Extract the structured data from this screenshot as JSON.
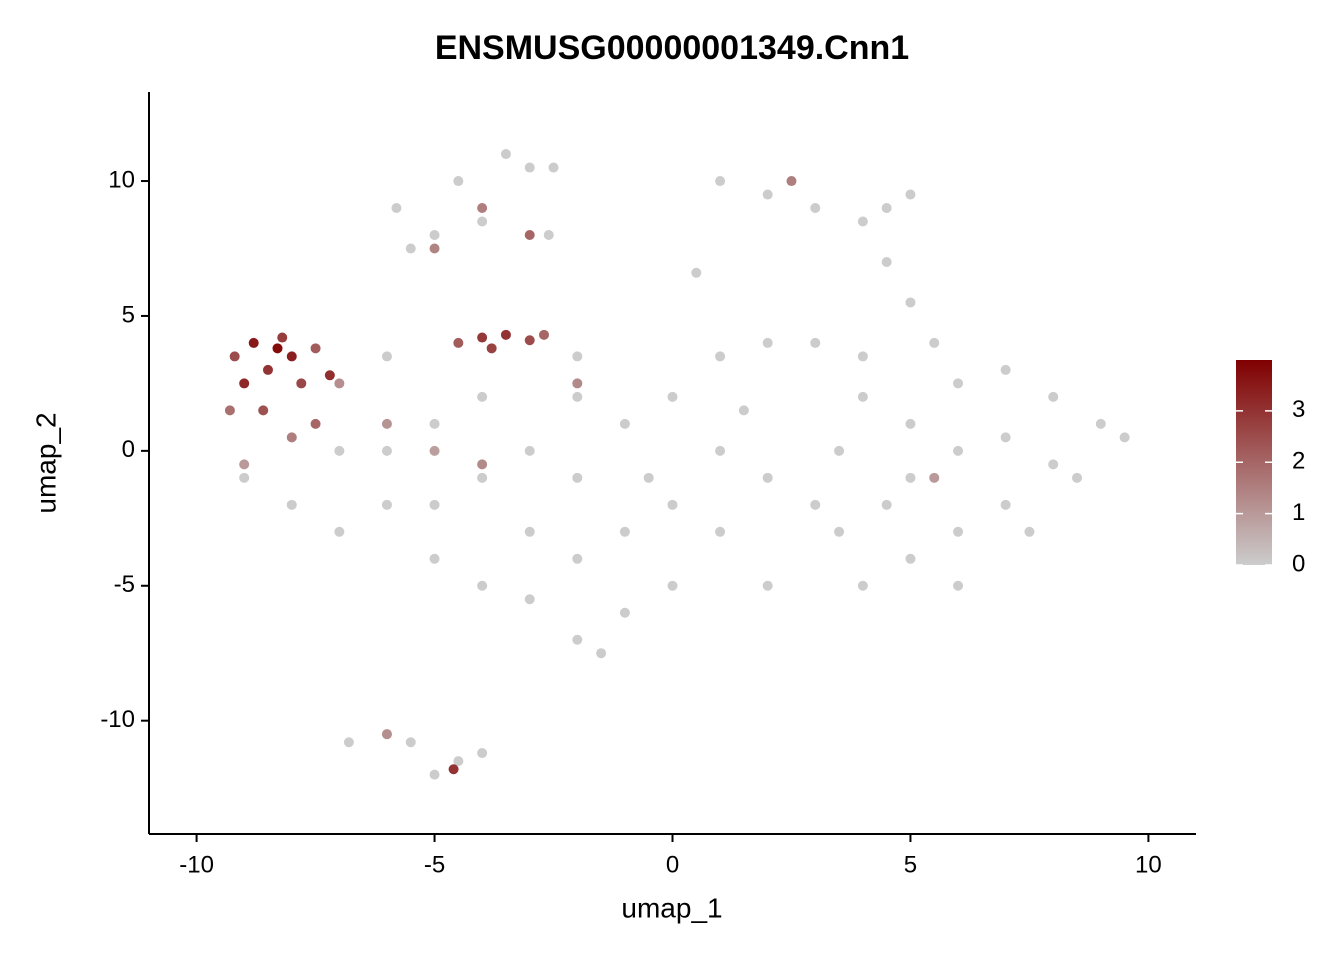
{
  "chart_data": {
    "type": "scatter",
    "title": "ENSMUSG00000001349.Cnn1",
    "x_label": "umap_1",
    "y_label": "umap_2",
    "xlim": [
      -11,
      11
    ],
    "ylim": [
      -14.2,
      13.3
    ],
    "xticks": [
      -10,
      -5,
      0,
      5,
      10
    ],
    "yticks": [
      -10,
      -5,
      0,
      5,
      10
    ],
    "low_color": "#cccccc",
    "high_color": "#800000",
    "colorbar_lim": [
      0,
      3.99
    ],
    "colorbar_ticks": [
      0,
      1,
      2,
      3
    ],
    "x": [
      4,
      5,
      6,
      7,
      8,
      9,
      9.5,
      8.5,
      7,
      6,
      5,
      4,
      3.5,
      3.5,
      5,
      6,
      7,
      8,
      4.5,
      6,
      5.5,
      5,
      7.5,
      3,
      4,
      1,
      2,
      3,
      0,
      -1,
      1,
      2,
      0,
      -1,
      0,
      -1,
      -2,
      -1.5,
      1,
      2,
      -0.5,
      1.5,
      -2,
      -9,
      -8,
      -7,
      -6,
      -5,
      -4,
      -3,
      -6,
      -5,
      -4,
      -3,
      -2,
      -7,
      -8,
      -5,
      -4,
      -2,
      -6,
      -3,
      -2,
      -5.8,
      -5,
      -4,
      -3,
      -3.5,
      -2.5,
      -5.5,
      -2.6,
      -4.5,
      1,
      2,
      3,
      4,
      4.5,
      5,
      4.5,
      0.5,
      -6.8,
      -6,
      -5.5,
      -4.5,
      -4,
      -5,
      -9.2,
      -9,
      -8.8,
      -8.5,
      -8.2,
      -8,
      -7.8,
      -7.5,
      -7.2,
      -9.3,
      -8.6,
      -8,
      -7.5,
      -7,
      -9,
      -8.3,
      -4.5,
      -4,
      -3.5,
      -3,
      -2.7,
      -3.8,
      -6,
      -5,
      -4,
      -4,
      -3,
      -5,
      -4.6,
      -6,
      2.5,
      5.5,
      -2
    ],
    "y": [
      2,
      1,
      2.5,
      3,
      2,
      1,
      0.5,
      -1,
      -2,
      -3,
      -4,
      -5,
      -3,
      0,
      -1,
      0,
      0.5,
      -0.5,
      -2,
      -5,
      4,
      5.5,
      -3,
      -2,
      3.5,
      3.5,
      4,
      4,
      2,
      1,
      0,
      -1,
      -2,
      -3,
      -5,
      -6,
      -7,
      -7.5,
      -3,
      -5,
      -1,
      1.5,
      3.5,
      -1,
      -2,
      -3,
      -2,
      -4,
      -5,
      -3,
      0,
      1,
      -1,
      0,
      -1,
      0,
      0.5,
      -2,
      2,
      2,
      3.5,
      -5.5,
      -4,
      9,
      8,
      8.5,
      10.5,
      11,
      10.5,
      7.5,
      8,
      10,
      10,
      9.5,
      9,
      8.5,
      9,
      9.5,
      7,
      6.6,
      -10.8,
      -10.5,
      -10.8,
      -11.5,
      -11.2,
      -12,
      3.5,
      2.5,
      4,
      3,
      4.2,
      3.5,
      2.5,
      3.8,
      2.8,
      1.5,
      1.5,
      0.5,
      1,
      2.5,
      -0.5,
      3.8,
      4,
      4.2,
      4.3,
      4.1,
      4.3,
      3.8,
      1,
      0,
      -0.5,
      9,
      8,
      7.5,
      -11.8,
      -10.5,
      10,
      -1,
      2.5
    ],
    "values": [
      0,
      0,
      0,
      0,
      0,
      0,
      0,
      0,
      0,
      0,
      0,
      0,
      0,
      0,
      0,
      0,
      0,
      0,
      0,
      0,
      0,
      0,
      0,
      0,
      0,
      0,
      0,
      0,
      0,
      0,
      0,
      0,
      0,
      0,
      0,
      0,
      0,
      0,
      0,
      0,
      0,
      0,
      0,
      0,
      0,
      0,
      0,
      0,
      0,
      0,
      0,
      0,
      0,
      0,
      0,
      0,
      0,
      0,
      0,
      0,
      0,
      0,
      0,
      0,
      0,
      0,
      0,
      0,
      0,
      0,
      0,
      0,
      0,
      0,
      0,
      0,
      0,
      0,
      0,
      0,
      0,
      0,
      0,
      0,
      0,
      0,
      2.5,
      3.2,
      3.5,
      3,
      2.8,
      3.4,
      2.6,
      2.2,
      3.1,
      1.8,
      2.4,
      1.5,
      2,
      1.2,
      1,
      3.8,
      2.2,
      2.9,
      3,
      2.5,
      2,
      2.7,
      1.1,
      0.9,
      1.3,
      1.5,
      2,
      1.4,
      3,
      1.2,
      1.5,
      1,
      1.3
    ]
  }
}
